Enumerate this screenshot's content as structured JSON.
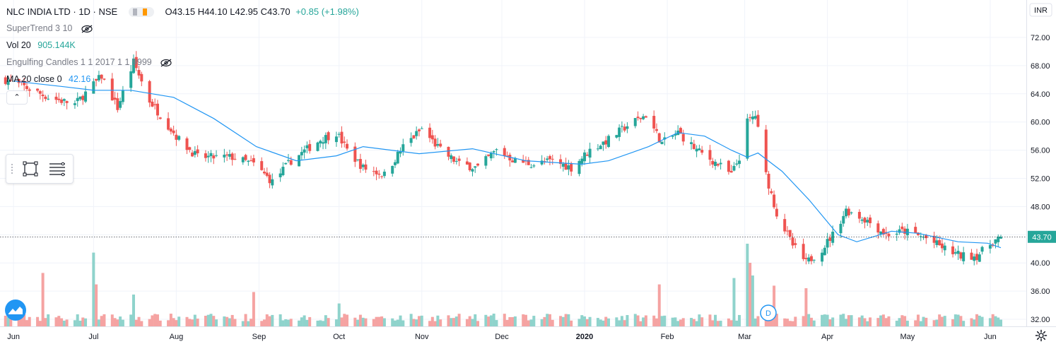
{
  "header": {
    "title": "NLC INDIA LTD · 1D · NSE",
    "ohlc": "O43.15 H44.10 L42.95 C43.70",
    "change": "+0.85 (+1.98%)"
  },
  "indicators": [
    {
      "name": "SuperTrend 3 10",
      "value": "",
      "color": "#787b86"
    },
    {
      "name": "Vol 20",
      "value": "905.144K",
      "color": "#26a69a"
    },
    {
      "name": "Engulfing Candles 1 1 2017 1 1 9999",
      "value": "",
      "color": "#787b86"
    },
    {
      "name": "MA 20 close 0",
      "value": "42.16",
      "color": "#2196f3"
    }
  ],
  "currency": "INR",
  "last_price_label": "43.70",
  "event_marker": "D",
  "colors": {
    "up": "#26a69a",
    "down": "#ef5350",
    "ma": "#2196f3",
    "vol_up": "#8fd3cc",
    "vol_down": "#f5a3a2",
    "last_price_bg": "#26a69a"
  },
  "chart_data": {
    "type": "candlestick",
    "title": "NLC INDIA LTD · 1D · NSE",
    "y_ticks": [
      "72.00",
      "68.00",
      "64.00",
      "60.00",
      "56.00",
      "52.00",
      "48.00",
      "44.00",
      "40.00",
      "36.00",
      "32.00"
    ],
    "y_range": [
      31.2,
      76.5
    ],
    "x_ticks": [
      "Jun",
      "Jul",
      "Aug",
      "Sep",
      "Oct",
      "Nov",
      "Dec",
      "2020",
      "Feb",
      "Mar",
      "Apr",
      "May",
      "Jun"
    ],
    "date_range": [
      "2019-05-28",
      "2020-06-05"
    ],
    "last_close": 43.7,
    "series": [
      {
        "name": "NLC INDIA LTD",
        "type": "candlestick",
        "close_keypoints": [
          {
            "date": "2019-05-29",
            "close": 66.0
          },
          {
            "date": "2019-06-05",
            "close": 65.0
          },
          {
            "date": "2019-06-14",
            "close": 63.5
          },
          {
            "date": "2019-06-24",
            "close": 62.5
          },
          {
            "date": "2019-07-04",
            "close": 66.5
          },
          {
            "date": "2019-07-10",
            "close": 62.0
          },
          {
            "date": "2019-07-16",
            "close": 68.5
          },
          {
            "date": "2019-07-22",
            "close": 63.0
          },
          {
            "date": "2019-08-02",
            "close": 57.5
          },
          {
            "date": "2019-08-09",
            "close": 55.0
          },
          {
            "date": "2019-08-22",
            "close": 55.0
          },
          {
            "date": "2019-08-30",
            "close": 54.0
          },
          {
            "date": "2019-09-06",
            "close": 51.5
          },
          {
            "date": "2019-09-13",
            "close": 54.5
          },
          {
            "date": "2019-09-24",
            "close": 57.5
          },
          {
            "date": "2019-09-30",
            "close": 58.5
          },
          {
            "date": "2019-10-04",
            "close": 56.0
          },
          {
            "date": "2019-10-10",
            "close": 53.5
          },
          {
            "date": "2019-10-18",
            "close": 52.5
          },
          {
            "date": "2019-10-25",
            "close": 56.5
          },
          {
            "date": "2019-11-01",
            "close": 59.0
          },
          {
            "date": "2019-11-08",
            "close": 56.0
          },
          {
            "date": "2019-11-15",
            "close": 54.0
          },
          {
            "date": "2019-11-22",
            "close": 53.5
          },
          {
            "date": "2019-11-29",
            "close": 56.0
          },
          {
            "date": "2019-12-06",
            "close": 54.5
          },
          {
            "date": "2019-12-13",
            "close": 54.0
          },
          {
            "date": "2019-12-20",
            "close": 54.5
          },
          {
            "date": "2019-12-27",
            "close": 53.5
          },
          {
            "date": "2020-01-03",
            "close": 56.0
          },
          {
            "date": "2020-01-10",
            "close": 57.5
          },
          {
            "date": "2020-01-17",
            "close": 59.5
          },
          {
            "date": "2020-01-24",
            "close": 61.0
          },
          {
            "date": "2020-01-30",
            "close": 57.0
          },
          {
            "date": "2020-02-05",
            "close": 58.5
          },
          {
            "date": "2020-02-12",
            "close": 56.0
          },
          {
            "date": "2020-02-20",
            "close": 54.0
          },
          {
            "date": "2020-02-25",
            "close": 52.5
          },
          {
            "date": "2020-02-28",
            "close": 55.0
          },
          {
            "date": "2020-03-02",
            "close": 60.0
          },
          {
            "date": "2020-03-05",
            "close": 61.0
          },
          {
            "date": "2020-03-09",
            "close": 52.5
          },
          {
            "date": "2020-03-13",
            "close": 47.0
          },
          {
            "date": "2020-03-19",
            "close": 42.5
          },
          {
            "date": "2020-03-24",
            "close": 40.0
          },
          {
            "date": "2020-03-30",
            "close": 42.0
          },
          {
            "date": "2020-04-03",
            "close": 44.0
          },
          {
            "date": "2020-04-08",
            "close": 47.5
          },
          {
            "date": "2020-04-16",
            "close": 46.0
          },
          {
            "date": "2020-04-23",
            "close": 44.0
          },
          {
            "date": "2020-04-30",
            "close": 44.5
          },
          {
            "date": "2020-05-08",
            "close": 43.5
          },
          {
            "date": "2020-05-15",
            "close": 42.0
          },
          {
            "date": "2020-05-21",
            "close": 41.0
          },
          {
            "date": "2020-05-27",
            "close": 41.0
          },
          {
            "date": "2020-06-02",
            "close": 43.0
          },
          {
            "date": "2020-06-05",
            "close": 43.7
          }
        ]
      },
      {
        "name": "MA 20 close 0",
        "type": "line",
        "points": [
          {
            "date": "2019-06-01",
            "value": 65.8
          },
          {
            "date": "2019-06-20",
            "value": 65.0
          },
          {
            "date": "2019-07-01",
            "value": 64.5
          },
          {
            "date": "2019-07-15",
            "value": 64.5
          },
          {
            "date": "2019-07-31",
            "value": 63.5
          },
          {
            "date": "2019-08-15",
            "value": 60.5
          },
          {
            "date": "2019-08-31",
            "value": 56.5
          },
          {
            "date": "2019-09-15",
            "value": 54.5
          },
          {
            "date": "2019-09-30",
            "value": 55.2
          },
          {
            "date": "2019-10-10",
            "value": 56.5
          },
          {
            "date": "2019-10-31",
            "value": 55.5
          },
          {
            "date": "2019-11-20",
            "value": 56.2
          },
          {
            "date": "2019-12-10",
            "value": 54.5
          },
          {
            "date": "2019-12-31",
            "value": 54.0
          },
          {
            "date": "2020-01-10",
            "value": 54.5
          },
          {
            "date": "2020-01-25",
            "value": 56.5
          },
          {
            "date": "2020-02-05",
            "value": 58.5
          },
          {
            "date": "2020-02-15",
            "value": 58.0
          },
          {
            "date": "2020-02-25",
            "value": 56.0
          },
          {
            "date": "2020-03-02",
            "value": 55.0
          },
          {
            "date": "2020-03-06",
            "value": 55.6
          },
          {
            "date": "2020-03-15",
            "value": 53.0
          },
          {
            "date": "2020-03-25",
            "value": 49.0
          },
          {
            "date": "2020-04-05",
            "value": 44.0
          },
          {
            "date": "2020-04-12",
            "value": 43.0
          },
          {
            "date": "2020-04-25",
            "value": 44.5
          },
          {
            "date": "2020-05-05",
            "value": 44.2
          },
          {
            "date": "2020-05-20",
            "value": 43.0
          },
          {
            "date": "2020-05-31",
            "value": 42.8
          },
          {
            "date": "2020-06-05",
            "value": 42.16
          }
        ]
      },
      {
        "name": "Vol 20",
        "type": "bar",
        "relative_spikes": [
          {
            "date": "2019-06-12",
            "level": 0.42
          },
          {
            "date": "2019-07-01",
            "level": 0.58
          },
          {
            "date": "2019-07-02",
            "level": 0.33
          },
          {
            "date": "2019-07-16",
            "level": 0.25
          },
          {
            "date": "2019-08-30",
            "level": 0.27
          },
          {
            "date": "2019-10-01",
            "level": 0.18
          },
          {
            "date": "2020-01-29",
            "level": 0.33
          },
          {
            "date": "2020-02-26",
            "level": 0.38
          },
          {
            "date": "2020-03-02",
            "level": 0.65
          },
          {
            "date": "2020-03-03",
            "level": 0.5
          },
          {
            "date": "2020-03-04",
            "level": 0.4
          },
          {
            "date": "2020-03-12",
            "level": 0.32
          },
          {
            "date": "2020-03-24",
            "level": 0.3
          }
        ]
      }
    ]
  }
}
